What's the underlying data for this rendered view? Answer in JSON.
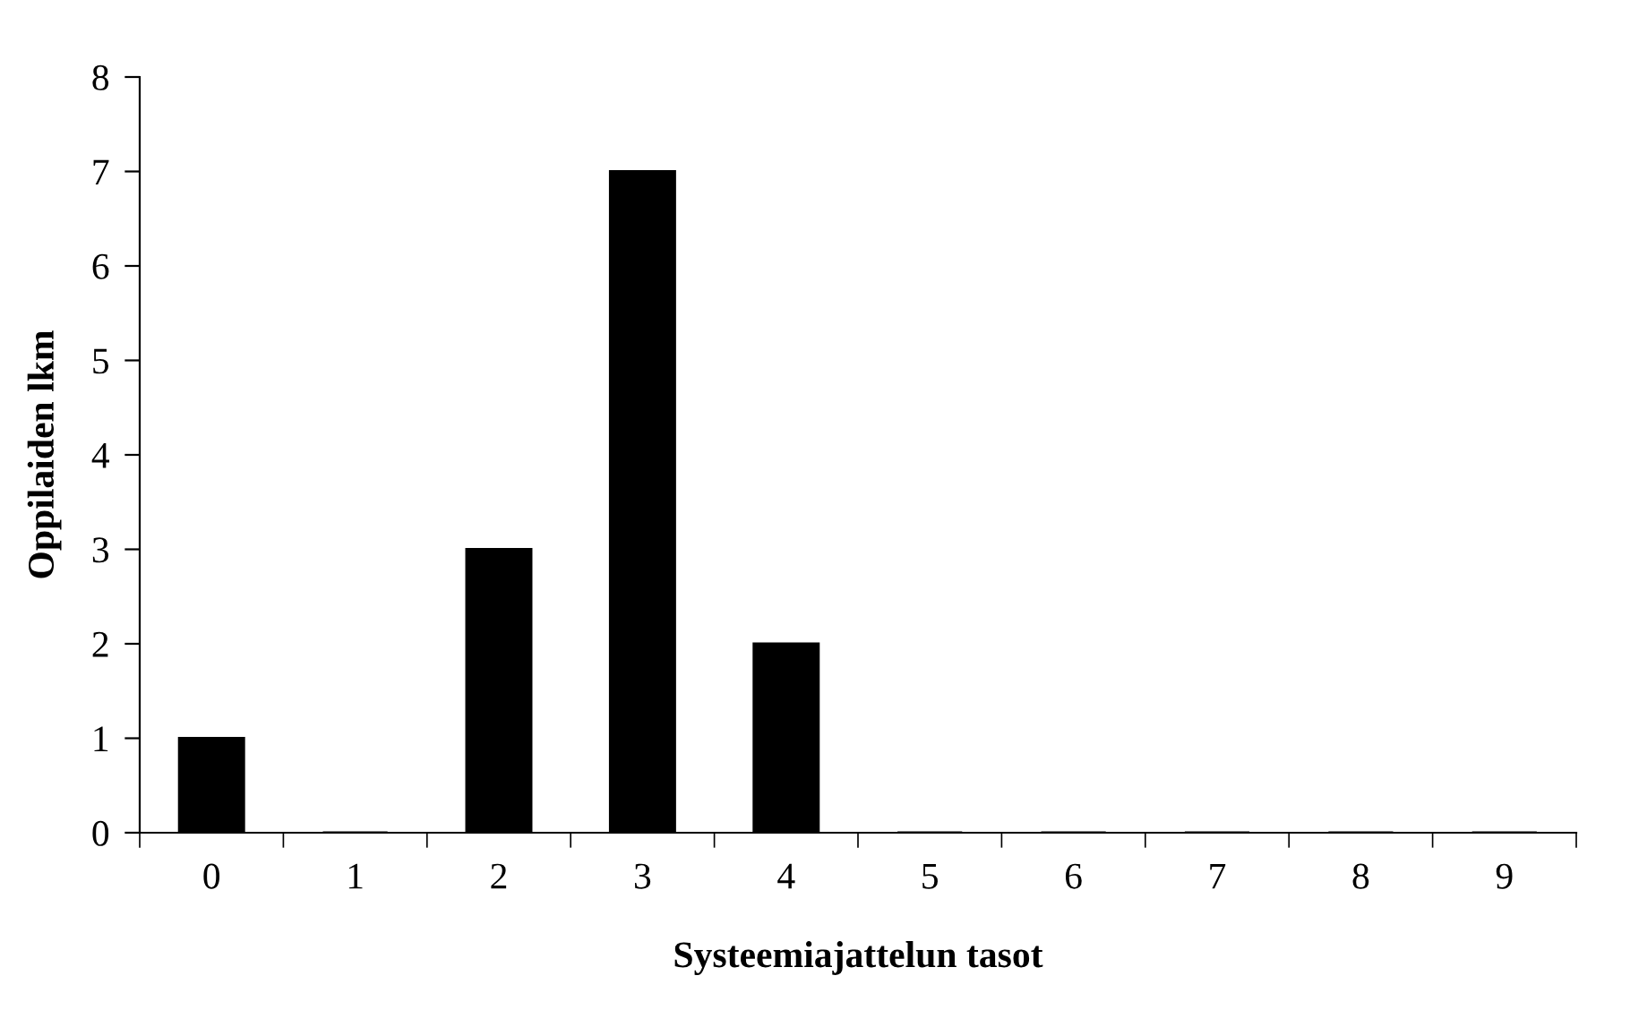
{
  "chart_data": {
    "type": "bar",
    "xlabel": "Systeemiajattelun tasot",
    "ylabel": "Oppilaiden lkm",
    "categories": [
      "0",
      "1",
      "2",
      "3",
      "4",
      "5",
      "6",
      "7",
      "8",
      "9"
    ],
    "values": [
      1,
      0,
      3,
      7,
      2,
      0,
      0,
      0,
      0,
      0
    ],
    "color": "#000000",
    "ylim": [
      0,
      8
    ],
    "yticks": [
      0,
      1,
      2,
      3,
      4,
      5,
      6,
      7,
      8
    ],
    "grid": false,
    "legend": false
  }
}
